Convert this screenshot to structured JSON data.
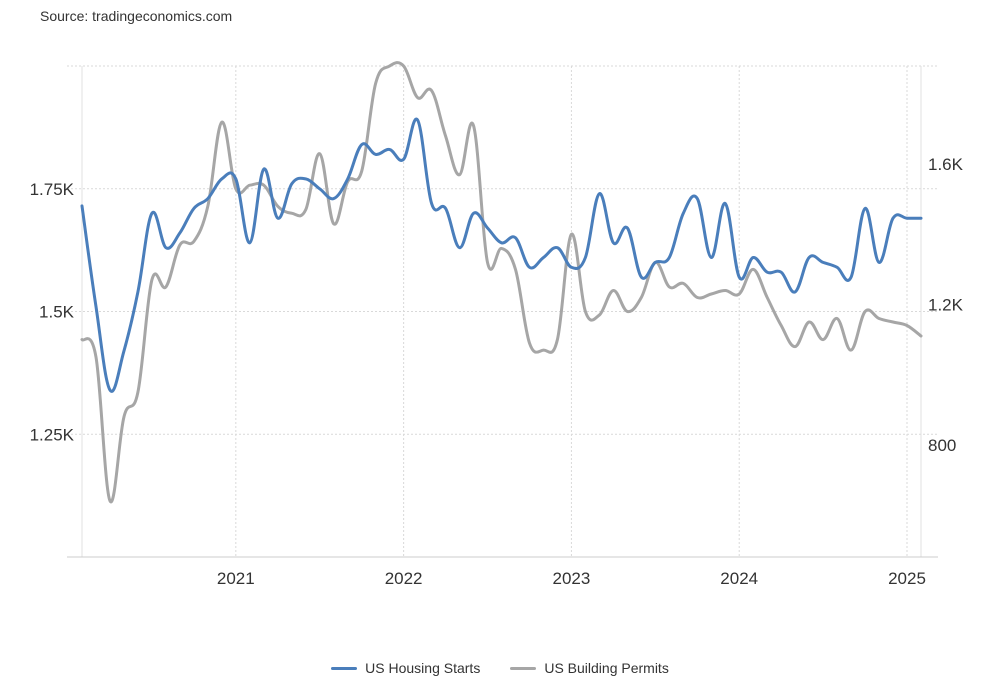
{
  "source": "Source: tradingeconomics.com",
  "chart_data": {
    "type": "line",
    "title": "",
    "x_ticks": [
      "2021",
      "2022",
      "2023",
      "2024",
      "2025"
    ],
    "x_range": [
      "2020-02",
      "2025-02"
    ],
    "left_axis": {
      "ticks": [
        1250,
        1500,
        1750
      ],
      "tick_labels": [
        "1.25K",
        "1.5K",
        "1.75K"
      ],
      "range": [
        1000,
        2000
      ]
    },
    "right_axis": {
      "ticks": [
        800,
        1200,
        1600
      ],
      "tick_labels": [
        "800",
        "1.2K",
        "1.6K"
      ],
      "range": [
        480,
        1880
      ]
    },
    "grid": true,
    "legend_position": "bottom",
    "series": [
      {
        "name": "US Housing Starts",
        "axis": "left",
        "color": "#4a7ebb",
        "x": [
          "2020-02",
          "2020-03",
          "2020-04",
          "2020-05",
          "2020-06",
          "2020-07",
          "2020-08",
          "2020-09",
          "2020-10",
          "2020-11",
          "2020-12",
          "2021-01",
          "2021-02",
          "2021-03",
          "2021-04",
          "2021-05",
          "2021-06",
          "2021-07",
          "2021-08",
          "2021-09",
          "2021-10",
          "2021-11",
          "2021-12",
          "2022-01",
          "2022-02",
          "2022-03",
          "2022-04",
          "2022-05",
          "2022-06",
          "2022-07",
          "2022-08",
          "2022-09",
          "2022-10",
          "2022-11",
          "2022-12",
          "2023-01",
          "2023-02",
          "2023-03",
          "2023-04",
          "2023-05",
          "2023-06",
          "2023-07",
          "2023-08",
          "2023-09",
          "2023-10",
          "2023-11",
          "2023-12",
          "2024-01",
          "2024-02",
          "2024-03",
          "2024-04",
          "2024-05",
          "2024-06",
          "2024-07",
          "2024-08",
          "2024-09",
          "2024-10",
          "2024-11",
          "2024-12",
          "2025-01",
          "2025-02"
        ],
        "values": [
          1715,
          1510,
          1340,
          1420,
          1540,
          1700,
          1630,
          1660,
          1710,
          1730,
          1770,
          1770,
          1640,
          1790,
          1690,
          1760,
          1770,
          1750,
          1730,
          1770,
          1840,
          1820,
          1830,
          1810,
          1890,
          1720,
          1710,
          1630,
          1700,
          1670,
          1640,
          1650,
          1590,
          1610,
          1630,
          1590,
          1610,
          1740,
          1640,
          1670,
          1570,
          1600,
          1610,
          1700,
          1730,
          1610,
          1720,
          1570,
          1610,
          1580,
          1580,
          1540,
          1610,
          1600,
          1590,
          1570,
          1710,
          1600,
          1690,
          1690,
          1690
        ]
      },
      {
        "name": "US Building Permits",
        "axis": "right",
        "color": "#a6a6a6",
        "x": [
          "2020-02",
          "2020-03",
          "2020-04",
          "2020-05",
          "2020-06",
          "2020-07",
          "2020-08",
          "2020-09",
          "2020-10",
          "2020-11",
          "2020-12",
          "2021-01",
          "2021-02",
          "2021-03",
          "2021-04",
          "2021-05",
          "2021-06",
          "2021-07",
          "2021-08",
          "2021-09",
          "2021-10",
          "2021-11",
          "2021-12",
          "2022-01",
          "2022-02",
          "2022-03",
          "2022-04",
          "2022-05",
          "2022-06",
          "2022-07",
          "2022-08",
          "2022-09",
          "2022-10",
          "2022-11",
          "2022-12",
          "2023-01",
          "2023-02",
          "2023-03",
          "2023-04",
          "2023-05",
          "2023-06",
          "2023-07",
          "2023-08",
          "2023-09",
          "2023-10",
          "2023-11",
          "2023-12",
          "2024-01",
          "2024-02",
          "2024-03",
          "2024-04",
          "2024-05",
          "2024-06",
          "2024-07",
          "2024-08",
          "2024-09",
          "2024-10",
          "2024-11",
          "2024-12",
          "2025-01",
          "2025-02"
        ],
        "values": [
          1100,
          1050,
          640,
          880,
          950,
          1270,
          1250,
          1370,
          1380,
          1480,
          1720,
          1530,
          1540,
          1540,
          1480,
          1460,
          1470,
          1630,
          1430,
          1550,
          1580,
          1830,
          1880,
          1880,
          1790,
          1810,
          1680,
          1570,
          1710,
          1320,
          1360,
          1300,
          1090,
          1070,
          1100,
          1400,
          1180,
          1170,
          1240,
          1180,
          1220,
          1320,
          1250,
          1260,
          1220,
          1230,
          1240,
          1230,
          1300,
          1220,
          1140,
          1080,
          1150,
          1100,
          1160,
          1070,
          1180,
          1160,
          1150,
          1140,
          1110
        ]
      }
    ]
  }
}
